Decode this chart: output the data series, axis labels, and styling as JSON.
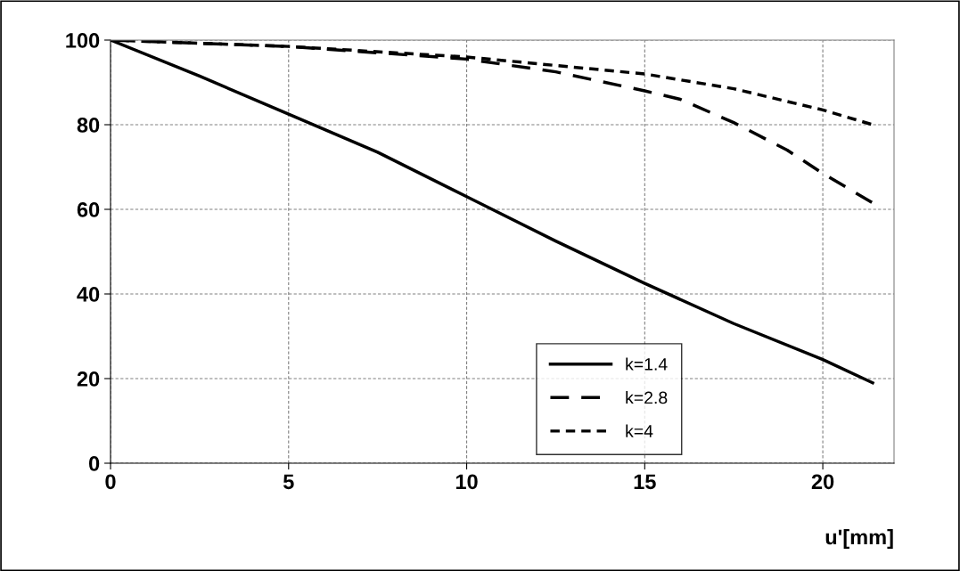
{
  "chart_data": {
    "type": "line",
    "xlabel": "u'[mm]",
    "xlim": [
      0,
      22
    ],
    "xticks": [
      0,
      5,
      10,
      15,
      20
    ],
    "ylim": [
      0,
      100
    ],
    "yticks": [
      0,
      20,
      40,
      60,
      80,
      100
    ],
    "grid": true,
    "legend": "bottom right",
    "marker": "none",
    "series": [
      {
        "name": "k=1.4",
        "color": "#000000",
        "line_style": "solid",
        "x": [
          0,
          2.5,
          5,
          7.5,
          10,
          12.5,
          15,
          17.5,
          20,
          21.4
        ],
        "values": [
          100,
          91.5,
          82.5,
          73.5,
          63,
          52.5,
          42.5,
          33,
          24.5,
          19
        ]
      },
      {
        "name": "k=2.8",
        "color": "#000000",
        "line_style": "dashed",
        "x": [
          0,
          5,
          10,
          12.5,
          15,
          16,
          17.5,
          19,
          20,
          21.4
        ],
        "values": [
          100,
          98.5,
          95.5,
          92.5,
          88,
          86,
          80.5,
          74,
          68.5,
          61.5
        ]
      },
      {
        "name": "k=4",
        "color": "#000000",
        "line_style": "dotted",
        "x": [
          0,
          5,
          10,
          15,
          17.5,
          20,
          21.4
        ],
        "values": [
          100,
          98.5,
          96,
          92,
          88.5,
          83.5,
          80
        ]
      }
    ]
  }
}
